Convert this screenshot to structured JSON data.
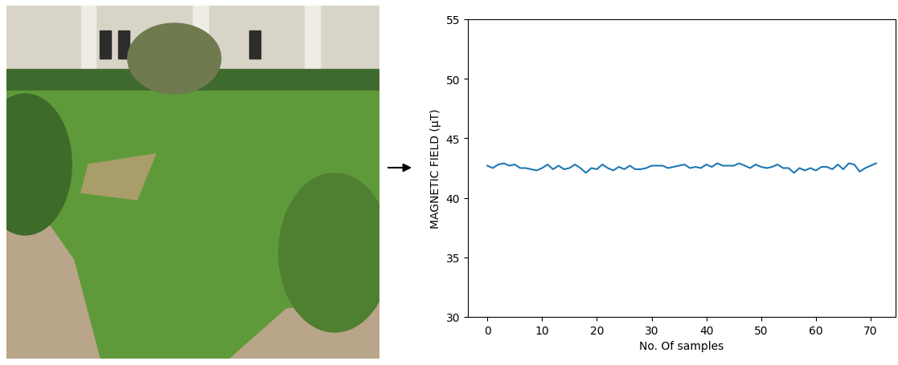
{
  "chart_data": {
    "type": "line",
    "x_label": "No. Of samples",
    "y_label": "MAGNETIC FIELD (µT)",
    "x": [
      0,
      1,
      2,
      3,
      4,
      5,
      6,
      7,
      8,
      9,
      10,
      11,
      12,
      13,
      14,
      15,
      16,
      17,
      18,
      19,
      20,
      21,
      22,
      23,
      24,
      25,
      26,
      27,
      28,
      29,
      30,
      31,
      32,
      33,
      34,
      35,
      36,
      37,
      38,
      39,
      40,
      41,
      42,
      43,
      44,
      45,
      46,
      47,
      48,
      49,
      50,
      51,
      52,
      53,
      54,
      55,
      56,
      57,
      58,
      59,
      60,
      61,
      62,
      63,
      64,
      65,
      66,
      67,
      68,
      69,
      70,
      71
    ],
    "values": [
      42.7,
      42.5,
      42.8,
      42.9,
      42.7,
      42.8,
      42.5,
      42.5,
      42.4,
      42.3,
      42.5,
      42.8,
      42.4,
      42.7,
      42.4,
      42.5,
      42.8,
      42.5,
      42.1,
      42.5,
      42.4,
      42.8,
      42.5,
      42.3,
      42.6,
      42.4,
      42.7,
      42.4,
      42.4,
      42.5,
      42.7,
      42.7,
      42.7,
      42.5,
      42.6,
      42.7,
      42.8,
      42.5,
      42.6,
      42.5,
      42.8,
      42.6,
      42.9,
      42.7,
      42.7,
      42.7,
      42.9,
      42.7,
      42.5,
      42.8,
      42.6,
      42.5,
      42.6,
      42.8,
      42.5,
      42.5,
      42.1,
      42.5,
      42.3,
      42.5,
      42.3,
      42.6,
      42.6,
      42.4,
      42.8,
      42.4,
      42.9,
      42.8,
      42.2,
      42.5,
      42.7,
      42.9
    ],
    "color": "#1f77b4",
    "xlim": [
      -3.55,
      74.55
    ],
    "xticks": [
      0,
      10,
      20,
      30,
      40,
      50,
      60,
      70
    ],
    "ylim": [
      30,
      55
    ],
    "yticks": [
      30,
      35,
      40,
      45,
      50,
      55
    ],
    "grid": false
  }
}
